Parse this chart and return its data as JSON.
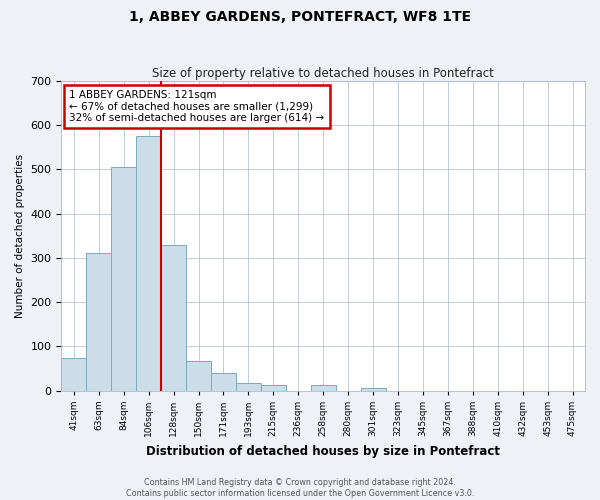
{
  "title": "1, ABBEY GARDENS, PONTEFRACT, WF8 1TE",
  "subtitle": "Size of property relative to detached houses in Pontefract",
  "xlabel": "Distribution of detached houses by size in Pontefract",
  "ylabel": "Number of detached properties",
  "bar_labels": [
    "41sqm",
    "63sqm",
    "84sqm",
    "106sqm",
    "128sqm",
    "150sqm",
    "171sqm",
    "193sqm",
    "215sqm",
    "236sqm",
    "258sqm",
    "280sqm",
    "301sqm",
    "323sqm",
    "345sqm",
    "367sqm",
    "388sqm",
    "410sqm",
    "432sqm",
    "453sqm",
    "475sqm"
  ],
  "bar_values": [
    75,
    311,
    505,
    575,
    328,
    68,
    40,
    18,
    13,
    0,
    12,
    0,
    7,
    0,
    0,
    0,
    0,
    0,
    0,
    0,
    0
  ],
  "bar_color": "#ccdce8",
  "bar_edge_color": "#7aaabb",
  "property_line_color": "#cc0000",
  "annotation_title": "1 ABBEY GARDENS: 121sqm",
  "annotation_line1": "← 67% of detached houses are smaller (1,299)",
  "annotation_line2": "32% of semi-detached houses are larger (614) →",
  "annotation_box_edgecolor": "#cc0000",
  "ylim": [
    0,
    700
  ],
  "yticks": [
    0,
    100,
    200,
    300,
    400,
    500,
    600,
    700
  ],
  "footer_line1": "Contains HM Land Registry data © Crown copyright and database right 2024.",
  "footer_line2": "Contains public sector information licensed under the Open Government Licence v3.0.",
  "background_color": "#eef2f7",
  "plot_bg_color": "#ffffff",
  "grid_color": "#c0ccd8"
}
